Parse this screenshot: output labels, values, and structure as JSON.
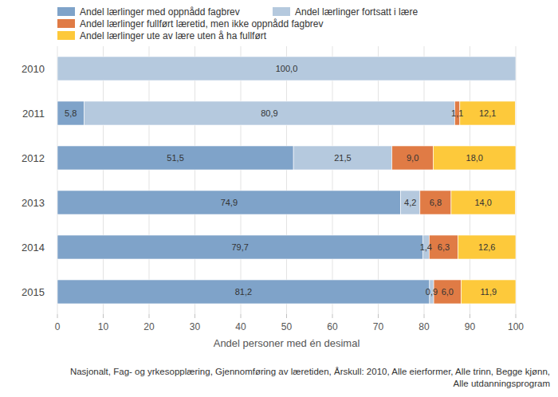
{
  "chart_data": {
    "type": "bar",
    "orientation": "horizontal",
    "stacked": true,
    "data_labels": true,
    "grid": true,
    "legend": "top",
    "categories": [
      "2010",
      "2011",
      "2012",
      "2013",
      "2014",
      "2015"
    ],
    "series": [
      {
        "name": "Andel lærlinger med oppnådd fagbrev",
        "color": "#7fa3c9",
        "values": [
          null,
          5.8,
          51.5,
          74.9,
          79.7,
          81.2
        ],
        "value_labels": [
          null,
          "5,8",
          "51,5",
          "74,9",
          "79,7",
          "81,2"
        ]
      },
      {
        "name": "Andel lærlinger fortsatt i lære",
        "color": "#b5c9de",
        "values": [
          100.0,
          80.9,
          21.5,
          4.2,
          1.4,
          0.9
        ],
        "value_labels": [
          "100,0",
          "80,9",
          "21,5",
          "4,2",
          "1,4",
          "0,9"
        ]
      },
      {
        "name": "Andel lærlinger fullført læretid, men ikke oppnådd fagbrev",
        "color": "#e07b45",
        "values": [
          null,
          1.1,
          9.0,
          6.8,
          6.3,
          6.0
        ],
        "value_labels": [
          null,
          "1,1",
          "9,0",
          "6,8",
          "6,3",
          "6,0"
        ]
      },
      {
        "name": "Andel lærlinger ute av lære uten å ha fullført",
        "color": "#fdc93b",
        "values": [
          null,
          12.1,
          18.0,
          14.0,
          12.6,
          11.9
        ],
        "value_labels": [
          null,
          "12,1",
          "18,0",
          "14,0",
          "12,6",
          "11,9"
        ]
      }
    ],
    "xlim": [
      0,
      100
    ],
    "xticks": [
      0,
      10,
      20,
      30,
      40,
      50,
      60,
      70,
      80,
      90,
      100
    ],
    "x_label": "Andel personer med én desimal",
    "source": [
      "Nasjonalt, Fag- og yrkesopplæring, Gjennomføring av læretiden, Årskull: 2010, Alle eierformer, Alle trinn, Begge kjønn,",
      "Alle utdanningsprogram"
    ]
  }
}
